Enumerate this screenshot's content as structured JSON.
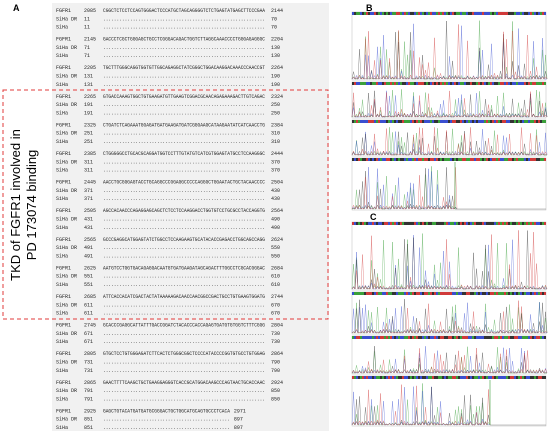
{
  "panels": {
    "A": {
      "label": "A",
      "box_text": [
        "TKD of FGFR1 involved in",
        "PD 173074 binding"
      ],
      "blocks": [
        {
          "rows": [
            [
              "FGFR1",
              2085,
              "CGGCTCTCCTCCAGTGGGACTCCCATGCTAGCAGGGGTCTCTGAGTATGAGCTTCCCGAA",
              2144
            ],
            [
              "SiHa DR",
              11,
              "............................................................",
              70
            ],
            [
              "SiHa",
              11,
              "............................................................",
              70
            ]
          ]
        },
        {
          "rows": [
            [
              "FGFR1",
              2145,
              "GACCCTCGCTGGGAGCTGCCTCGGGACAGACTGGTCTTAGGCAAACCCCTGGGAGAGGGC",
              2204
            ],
            [
              "SiHa DR",
              71,
              "............................................................",
              130
            ],
            [
              "SiHa",
              71,
              "............................................................",
              130
            ]
          ]
        },
        {
          "rows": [
            [
              "FGFR1",
              2205,
              "TGCTTTGGGCAGGTGGTGTTGGCAGAGGCTATCGGGCTGGACAAGGACAAACCCAACCGT",
              2264
            ],
            [
              "SiHa DR",
              131,
              "............................................................",
              190
            ],
            [
              "SiHa",
              131,
              "............................................................",
              190
            ]
          ]
        },
        {
          "rows": [
            [
              "FGFR1",
              2265,
              "GTGACCAAAGTGGCTGTGAAGATGTTGAAGTCGGACGCAACAGAGAAAGACTTGTCAGAC",
              2324
            ],
            [
              "SiHa DR",
              191,
              "............................................................",
              250
            ],
            [
              "SiHa",
              191,
              "............................................................",
              250
            ]
          ]
        },
        {
          "rows": [
            [
              "FGFR1",
              2325,
              "CTGATCTCAGAAATGGAGATGATGAAGATGATCGGGAAGCATAAGAATATCATCAACCTG",
              2384
            ],
            [
              "SiHa DR",
              251,
              "............................................................",
              310
            ],
            [
              "SiHa",
              251,
              "............................................................",
              310
            ]
          ]
        },
        {
          "rows": [
            [
              "FGFR1",
              2385,
              "CTGGGGGCCTGCACGCAGGATGGTCCTTTGTATGTCATCGTGGAGTATGCCTCCAAGGGC",
              2444
            ],
            [
              "SiHa DR",
              311,
              "............................................................",
              370
            ],
            [
              "SiHa",
              311,
              "............................................................",
              370
            ]
          ]
        },
        {
          "rows": [
            [
              "FGFR1",
              2445,
              "AACCTGCGGGAGTACCTGCAGGCCCGGAGGCCCCCAGGGCTGGAATACTGCTACAACCCC",
              2504
            ],
            [
              "SiHa DR",
              371,
              "............................................................",
              430
            ],
            [
              "SiHa",
              371,
              "............................................................",
              430
            ]
          ]
        },
        {
          "rows": [
            [
              "FGFR1",
              2505,
              "AGCCACAACCCAGAGGAGCAGCTCTCCTCCAAGGACCTGGTGTCCTGCGCCTACCAGGTG",
              2564
            ],
            [
              "SiHa DR",
              431,
              "............................................................",
              490
            ],
            [
              "SiHa",
              431,
              "............................................................",
              490
            ]
          ]
        },
        {
          "rows": [
            [
              "FGFR1",
              2565,
              "GCCCGAGGCATGGAGTATCTGGCCTCCAAGAAGTGCATACACCGAGACCTGGCAGCCAGG",
              2624
            ],
            [
              "SiHa DR",
              491,
              "............................................................",
              550
            ],
            [
              "SiHa",
              491,
              "............................................................",
              550
            ]
          ]
        },
        {
          "rows": [
            [
              "FGFR1",
              2625,
              "AATGTCCTGGTGACAGAGGACAATGTGATGAAGATAGCAGACTTTGGCCTCGCACGGGAC",
              2684
            ],
            [
              "SiHa DR",
              551,
              "............................................................",
              610
            ],
            [
              "SiHa",
              551,
              "............................................................",
              610
            ]
          ]
        },
        {
          "rows": [
            [
              "FGFR1",
              2685,
              "ATTCACCACATCGACTACTATAAAAAGACAACCAACGGCCGACTGCCTGTGAAGTGGATG",
              2744
            ],
            [
              "SiHa DR",
              611,
              "............................................................",
              670
            ],
            [
              "SiHa",
              611,
              "............................................................",
              670
            ]
          ]
        },
        {
          "rows": [
            [
              "FGFR1",
              2745,
              "GCACCCGAGGCATTATTTGACCGGATCTACACCCACCAGAGTGATGTGTGGTCTTTCGGG",
              2804
            ],
            [
              "SiHa DR",
              671,
              "............................................................",
              730
            ],
            [
              "SiHa",
              671,
              "............................................................",
              730
            ]
          ]
        },
        {
          "rows": [
            [
              "FGFR1",
              2805,
              "GTGCTCCTGTGGGAGATCTTCACTCTGGGCGGCTCCCCATACCCCGGTGTGCCTGTGGAG",
              2864
            ],
            [
              "SiHa DR",
              731,
              "............................................................",
              790
            ],
            [
              "SiHa",
              731,
              "............................................................",
              790
            ]
          ]
        },
        {
          "rows": [
            [
              "FGFR1",
              2865,
              "GAACTTTTCAAGCTGCTGAAGGAGGGTCACCGCATGGACAAGCCCAGTAACTGCACCAAC",
              2924
            ],
            [
              "SiHa DR",
              791,
              "............................................................",
              850
            ],
            [
              "SiHa",
              791,
              "............................................................",
              850
            ]
          ]
        },
        {
          "rows": [
            [
              "FGFR1",
              2925,
              "GAGCTGTACATGATGATGCGGGACTGCTGGCATGCAGTGCCCTCACA",
              2971
            ],
            [
              "SiHa DR",
              851,
              "...............................................",
              897
            ],
            [
              "SiHa",
              851,
              "...............................................",
              897
            ]
          ]
        }
      ]
    },
    "B": {
      "label": "B"
    },
    "C": {
      "label": "C"
    }
  }
}
